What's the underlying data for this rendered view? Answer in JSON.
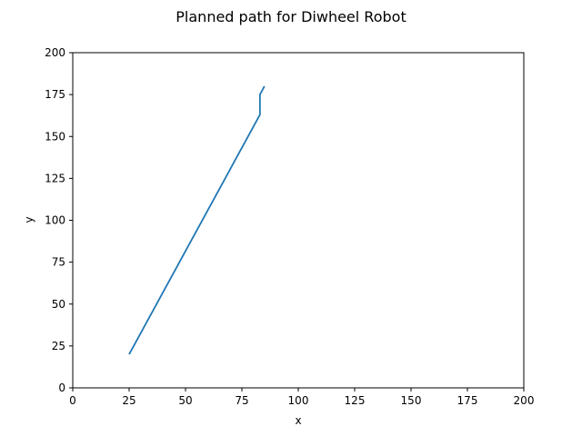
{
  "chart_data": {
    "type": "line",
    "title": "Planned path for Diwheel Robot",
    "xlabel": "x",
    "ylabel": "y",
    "xlim": [
      0,
      200
    ],
    "ylim": [
      0,
      200
    ],
    "xticks": [
      0,
      25,
      50,
      75,
      100,
      125,
      150,
      175,
      200
    ],
    "yticks": [
      0,
      25,
      50,
      75,
      100,
      125,
      150,
      175,
      200
    ],
    "grid": false,
    "series": [
      {
        "color": "#1f77b4",
        "x": [
          25,
          83,
          83,
          83,
          85
        ],
        "y": [
          20,
          163,
          165,
          175,
          180
        ]
      }
    ]
  }
}
